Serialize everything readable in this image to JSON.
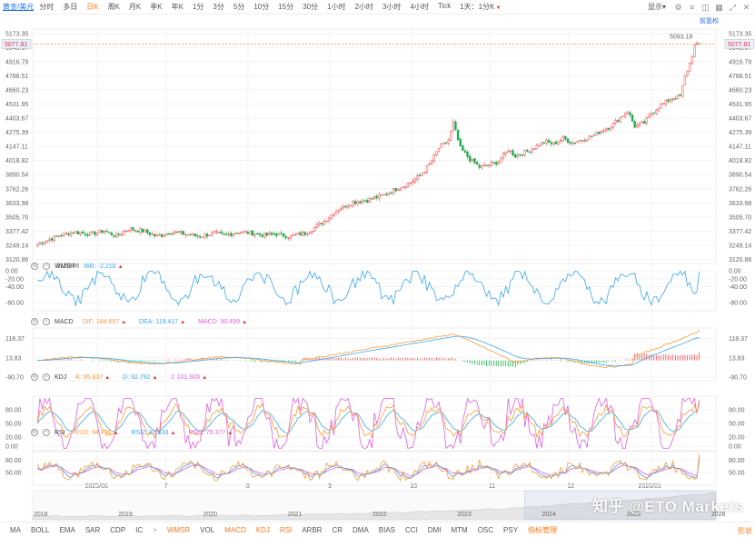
{
  "toolbar": {
    "symbol": "黄金/美元",
    "periods": [
      {
        "label": "分时",
        "active": false,
        "caret": false
      },
      {
        "label": "多日",
        "active": false,
        "caret": false
      },
      {
        "label": "日K",
        "active": true,
        "caret": false
      },
      {
        "label": "周K",
        "active": false,
        "caret": false
      },
      {
        "label": "月K",
        "active": false,
        "caret": false
      },
      {
        "label": "季K",
        "active": false,
        "caret": false
      },
      {
        "label": "年K",
        "active": false,
        "caret": false
      },
      {
        "label": "1分",
        "active": false,
        "caret": false
      },
      {
        "label": "3分",
        "active": false,
        "caret": false
      },
      {
        "label": "5分",
        "active": false,
        "caret": false
      },
      {
        "label": "10分",
        "active": false,
        "caret": false
      },
      {
        "label": "15分",
        "active": false,
        "caret": false
      },
      {
        "label": "30分",
        "active": false,
        "caret": false
      },
      {
        "label": "1小时",
        "active": false,
        "caret": false
      },
      {
        "label": "2小时",
        "active": false,
        "caret": false
      },
      {
        "label": "3小时",
        "active": false,
        "caret": false
      },
      {
        "label": "4小时",
        "active": false,
        "caret": false
      },
      {
        "label": "Tick",
        "active": false,
        "caret": false
      },
      {
        "label": "1天：1分K",
        "active": false,
        "caret": true
      }
    ],
    "display_label": "显示",
    "right_icons": [
      "gear-icon",
      "menu-icon",
      "camera-icon",
      "grid-icon",
      "expand-icon",
      "close-icon"
    ],
    "front_restore": "前复权"
  },
  "bottombar": {
    "indicators": [
      {
        "label": "MA",
        "on": false
      },
      {
        "label": "BOLL",
        "on": false
      },
      {
        "label": "EMA",
        "on": false
      },
      {
        "label": "SAR",
        "on": false
      },
      {
        "label": "CDP",
        "on": false
      },
      {
        "label": "IC",
        "on": false
      },
      {
        "label": ">",
        "on": false,
        "sep": true
      },
      {
        "label": "WMSR",
        "on": true
      },
      {
        "label": "VOL",
        "on": false
      },
      {
        "label": "MACD",
        "on": true
      },
      {
        "label": "KDJ",
        "on": true
      },
      {
        "label": "RSI",
        "on": true
      },
      {
        "label": "ARBR",
        "on": false
      },
      {
        "label": "CR",
        "on": false
      },
      {
        "label": "DMA",
        "on": false
      },
      {
        "label": "BIAS",
        "on": false
      },
      {
        "label": "CCI",
        "on": false
      },
      {
        "label": "DMI",
        "on": false
      },
      {
        "label": "MTM",
        "on": false
      },
      {
        "label": "OSC",
        "on": false
      },
      {
        "label": "PSY",
        "on": false
      },
      {
        "label": "指标管理",
        "on": true
      }
    ],
    "right": "形状"
  },
  "watermark": "知乎 @ETO Markets",
  "colors": {
    "up": "#f04848",
    "down": "#1aab4a",
    "accent": "#ff7a1a",
    "link": "#1f6fe5",
    "wr": "#3aa7f0",
    "dif": "#ff9933",
    "dea": "#3aa7f0",
    "macd": "#e060e0",
    "k": "#ff9933",
    "d": "#3aa7f0",
    "j": "#e060e0",
    "rsi1": "#ff9933",
    "rsi2": "#3aa7f0",
    "rsi3": "#e060e0"
  },
  "panels": {
    "wmsr": {
      "name": "WMSR",
      "items": [
        {
          "label": "WR: -2.216",
          "color": "#3aa7f0",
          "arrow": true
        }
      ]
    },
    "macd": {
      "name": "MACD",
      "items": [
        {
          "label": "DIF: 164.667",
          "color": "#ff9933",
          "arrow": true
        },
        {
          "label": "DEA: 119.417",
          "color": "#3aa7f0",
          "arrow": true
        },
        {
          "label": "MACD: 90.499",
          "color": "#e060e0",
          "arrow": true
        }
      ]
    },
    "kdj": {
      "name": "KDJ",
      "items": [
        {
          "label": "K: 95.837",
          "color": "#ff9933",
          "arrow": true
        },
        {
          "label": "D: 92.792",
          "color": "#3aa7f0",
          "arrow": true
        },
        {
          "label": "J: 101.926",
          "color": "#e060e0",
          "arrow": true
        }
      ]
    },
    "rsi": {
      "name": "RSI",
      "items": [
        {
          "label": "RSI1: 94.496",
          "color": "#ff9933",
          "arrow": true
        },
        {
          "label": "RSI2: 87.333",
          "color": "#3aa7f0",
          "arrow": true
        },
        {
          "label": "RSI3: 79.377",
          "color": "#e060e0",
          "arrow": true
        }
      ]
    }
  },
  "chart_data": [
    {
      "type": "candlestick",
      "title": "黄金/美元 日K",
      "y_ticks": [
        "5173.35",
        "5045.07",
        "4916.79",
        "4788.51",
        "4660.23",
        "4531.95",
        "4403.67",
        "4275.39",
        "4147.11",
        "4018.82",
        "3890.54",
        "3762.26",
        "3633.98",
        "3505.70",
        "3377.42",
        "3249.14",
        "3120.86"
      ],
      "ylim": [
        3100,
        5180
      ],
      "current_price": "5077.81",
      "high_label": "5093.18",
      "low_label": "3120.86",
      "x_labels": [
        "2025/06",
        "7",
        "8",
        "9",
        "10",
        "11",
        "12",
        "2026/01"
      ],
      "close_path": [
        [
          0,
          3260
        ],
        [
          8,
          3330
        ],
        [
          15,
          3370
        ],
        [
          22,
          3350
        ],
        [
          28,
          3380
        ],
        [
          33,
          3330
        ],
        [
          38,
          3400
        ],
        [
          44,
          3380
        ],
        [
          50,
          3330
        ],
        [
          56,
          3370
        ],
        [
          62,
          3350
        ],
        [
          68,
          3330
        ],
        [
          74,
          3360
        ],
        [
          78,
          3340
        ],
        [
          84,
          3370
        ],
        [
          90,
          3360
        ],
        [
          95,
          3340
        ],
        [
          100,
          3350
        ],
        [
          106,
          3330
        ],
        [
          112,
          3360
        ],
        [
          116,
          3410
        ],
        [
          120,
          3470
        ],
        [
          126,
          3580
        ],
        [
          132,
          3640
        ],
        [
          138,
          3660
        ],
        [
          144,
          3700
        ],
        [
          150,
          3760
        ],
        [
          156,
          3820
        ],
        [
          160,
          3880
        ],
        [
          164,
          3980
        ],
        [
          168,
          4130
        ],
        [
          172,
          4200
        ],
        [
          174,
          4360
        ],
        [
          177,
          4130
        ],
        [
          181,
          4030
        ],
        [
          185,
          3960
        ],
        [
          189,
          3980
        ],
        [
          193,
          4010
        ],
        [
          197,
          4120
        ],
        [
          200,
          4060
        ],
        [
          204,
          4090
        ],
        [
          208,
          4140
        ],
        [
          212,
          4190
        ],
        [
          216,
          4170
        ],
        [
          220,
          4220
        ],
        [
          224,
          4180
        ],
        [
          228,
          4210
        ],
        [
          232,
          4240
        ],
        [
          236,
          4290
        ],
        [
          240,
          4330
        ],
        [
          244,
          4410
        ],
        [
          247,
          4470
        ],
        [
          250,
          4330
        ],
        [
          254,
          4360
        ],
        [
          257,
          4450
        ],
        [
          261,
          4520
        ],
        [
          265,
          4580
        ],
        [
          269,
          4600
        ],
        [
          271,
          4780
        ],
        [
          273,
          4900
        ],
        [
          275,
          5060
        ],
        [
          277,
          5080
        ]
      ]
    },
    {
      "type": "line",
      "title": "WMSR",
      "y_ticks": [
        "0.00",
        "-20.00",
        "-40.00",
        "-80.00"
      ],
      "ylim": [
        -100,
        0
      ],
      "series": [
        {
          "name": "WR",
          "last": -2.216
        }
      ]
    },
    {
      "type": "line",
      "title": "MACD",
      "y_ticks": [
        "118.37",
        "13.83",
        "-90.70"
      ],
      "ylim": [
        -110,
        175
      ],
      "series": [
        {
          "name": "DIF",
          "last": 164.667
        },
        {
          "name": "DEA",
          "last": 119.417
        },
        {
          "name": "MACD",
          "last": 90.499
        }
      ]
    },
    {
      "type": "line",
      "title": "KDJ",
      "y_ticks": [
        "80.00",
        "50.00",
        "20.00",
        "0.00"
      ],
      "ylim": [
        -10,
        110
      ],
      "series": [
        {
          "name": "K",
          "last": 95.837
        },
        {
          "name": "D",
          "last": 92.792
        },
        {
          "name": "J",
          "last": 101.926
        }
      ]
    },
    {
      "type": "line",
      "title": "RSI",
      "y_ticks": [
        "80.00",
        "50.00"
      ],
      "ylim": [
        20,
        100
      ],
      "series": [
        {
          "name": "RSI1",
          "last": 94.496
        },
        {
          "name": "RSI2",
          "last": 87.333
        },
        {
          "name": "RSI3",
          "last": 79.377
        }
      ]
    },
    {
      "type": "area",
      "title": "overview",
      "x_labels": [
        "2018",
        "2019",
        "2020",
        "2021",
        "2022",
        "2023",
        "2024",
        "2025",
        "2026"
      ]
    }
  ]
}
